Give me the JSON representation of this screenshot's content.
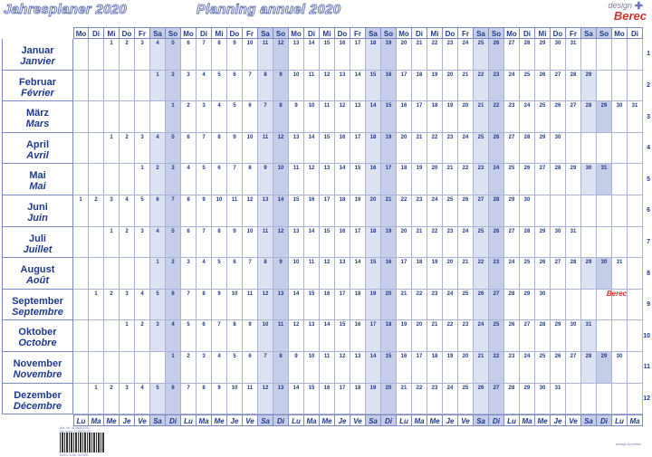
{
  "header": {
    "title_de": "Jahresplaner 2020",
    "title_fr": "Planning annuel 2020",
    "logo_small": "design",
    "logo_brand": "Berec"
  },
  "weekdays_de": [
    "Mo",
    "Di",
    "Mi",
    "Do",
    "Fr",
    "Sa",
    "So"
  ],
  "weekdays_fr": [
    "Lu",
    "Ma",
    "Me",
    "Je",
    "Ve",
    "Sa",
    "Di"
  ],
  "columns": 37,
  "months": [
    {
      "de": "Januar",
      "fr": "Janvier",
      "offset": 2,
      "days": 31
    },
    {
      "de": "Februar",
      "fr": "Février",
      "offset": 5,
      "days": 29
    },
    {
      "de": "März",
      "fr": "Mars",
      "offset": 6,
      "days": 31
    },
    {
      "de": "April",
      "fr": "Avril",
      "offset": 2,
      "days": 30
    },
    {
      "de": "Mai",
      "fr": "Mai",
      "offset": 4,
      "days": 31
    },
    {
      "de": "Juni",
      "fr": "Juin",
      "offset": 0,
      "days": 30
    },
    {
      "de": "Juli",
      "fr": "Juillet",
      "offset": 2,
      "days": 31
    },
    {
      "de": "August",
      "fr": "Août",
      "offset": 5,
      "days": 31
    },
    {
      "de": "September",
      "fr": "Septembre",
      "offset": 1,
      "days": 30
    },
    {
      "de": "Oktober",
      "fr": "Octobre",
      "offset": 3,
      "days": 31
    },
    {
      "de": "November",
      "fr": "Novembre",
      "offset": 6,
      "days": 30
    },
    {
      "de": "Dezember",
      "fr": "Décembre",
      "offset": 1,
      "days": 31
    }
  ],
  "footer": {
    "art_de": "Art. Nr. B 5602/20",
    "art_fr": "No d'art. B 5602/20",
    "barcode_digits": "5410 1061 02430",
    "design_credit": "design by berec",
    "note_brand": "Berec"
  }
}
